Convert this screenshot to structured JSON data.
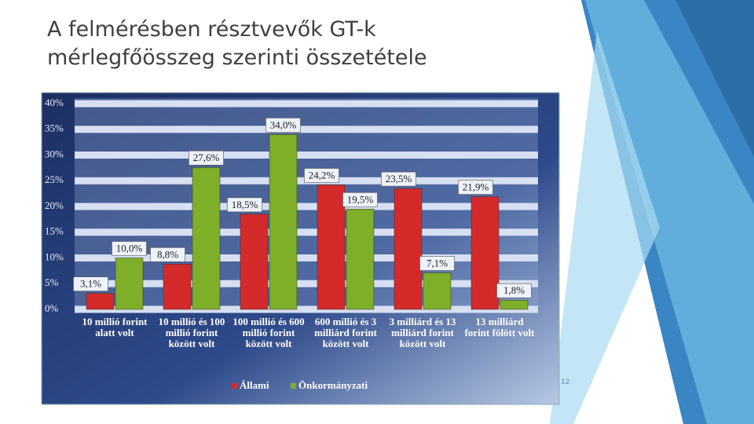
{
  "chart_data": {
    "type": "bar",
    "title": "A felmérésben résztvevők GT-k mérlegfőösszeg szerinti összetétele",
    "categories": [
      "10 millió forint alatt volt",
      "10 millió és 100 millió forint között volt",
      "100 millió és 600 millió forint között volt",
      "600 millió és 3 milliárd forint között volt",
      "3 milliárd és 13 milliárd forint között volt",
      "13 milliárd forint fölött volt"
    ],
    "series": [
      {
        "name": "Állami",
        "color": "#d42a2a",
        "values": [
          3.1,
          8.8,
          18.5,
          24.2,
          23.5,
          21.9
        ],
        "value_labels": [
          "3,1%",
          "8,8%",
          "18,5%",
          "24,2%",
          "23,5%",
          "21,9%"
        ]
      },
      {
        "name": "Önkormányzati",
        "color": "#7fae28",
        "values": [
          10.0,
          27.6,
          34.0,
          19.5,
          7.1,
          1.8
        ],
        "value_labels": [
          "10,0%",
          "27,6%",
          "34,0%",
          "19,5%",
          "7,1%",
          "1,8%"
        ]
      }
    ],
    "ylim": [
      0,
      40
    ],
    "yticks": [
      {
        "value": 0,
        "label": "0%"
      },
      {
        "value": 5,
        "label": "5%"
      },
      {
        "value": 10,
        "label": "10%"
      },
      {
        "value": 15,
        "label": "15%"
      },
      {
        "value": 20,
        "label": "20%"
      },
      {
        "value": 25,
        "label": "25%"
      },
      {
        "value": 30,
        "label": "30%"
      },
      {
        "value": 35,
        "label": "35%"
      },
      {
        "value": 40,
        "label": "40%"
      }
    ],
    "grid": true,
    "legend": "bottom"
  },
  "page_number": "12"
}
